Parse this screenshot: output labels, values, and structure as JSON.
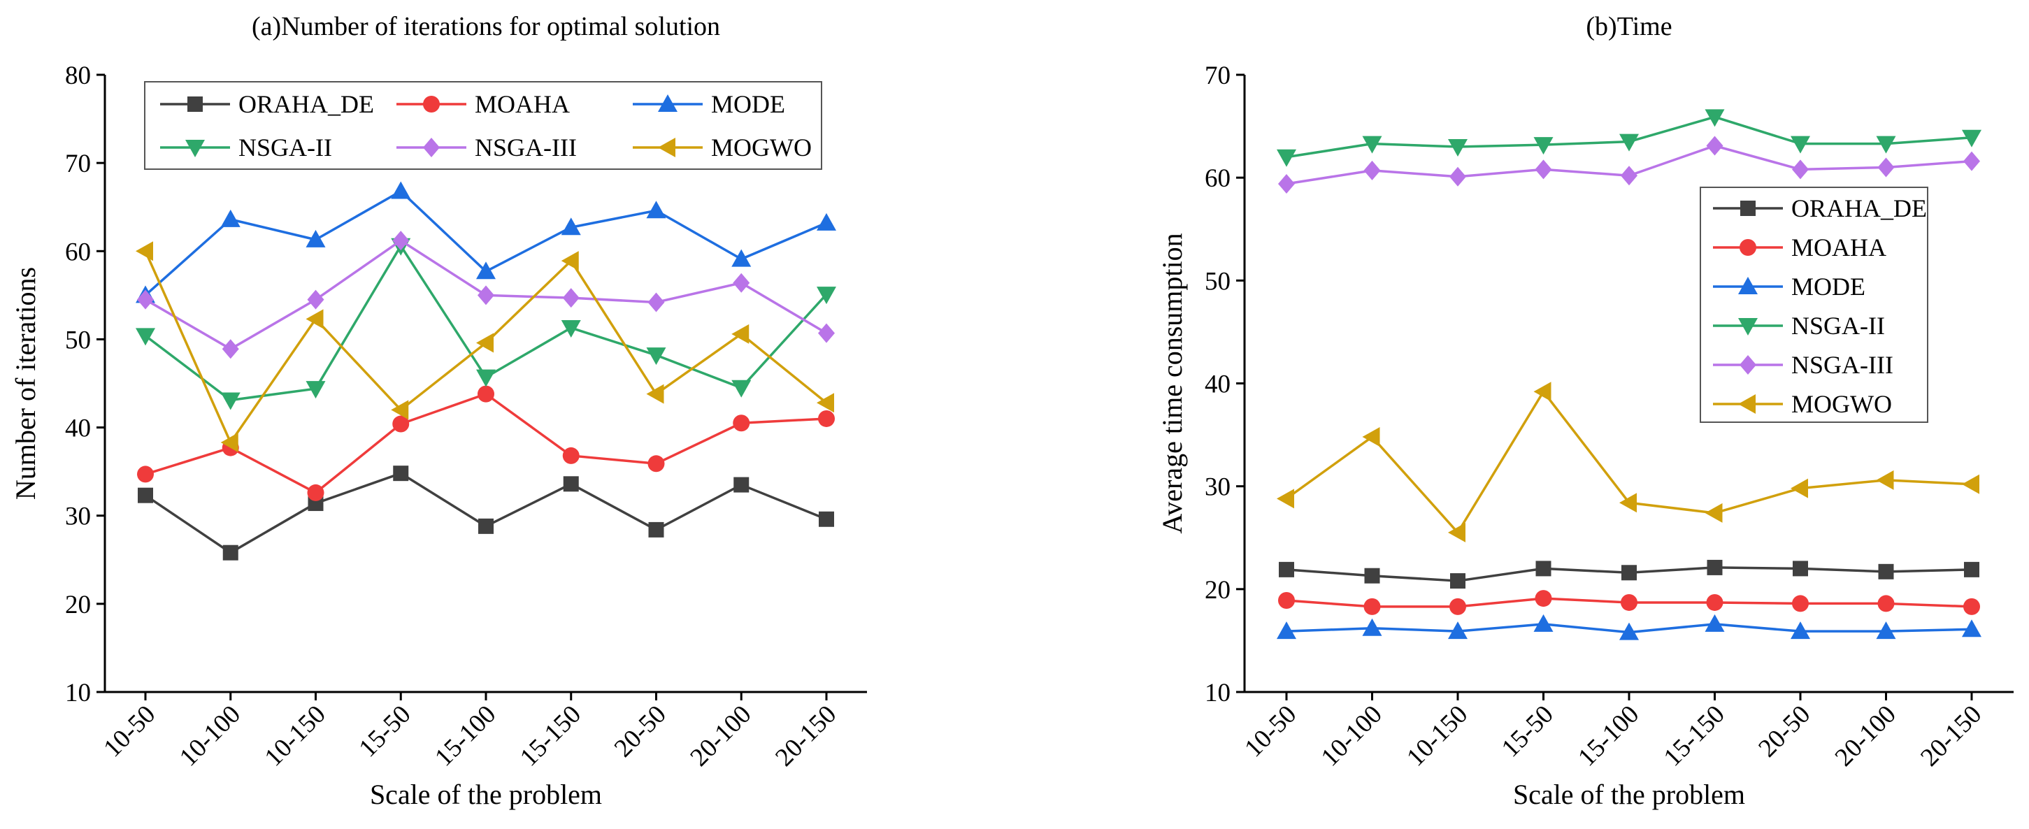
{
  "charts": [
    {
      "type": "line",
      "title": "(a)Number of iterations for optimal solution",
      "xlabel": "Scale of the problem",
      "ylabel": "Number of iterations",
      "categories": [
        "10-50",
        "10-100",
        "10-150",
        "15-50",
        "15-100",
        "15-150",
        "20-50",
        "20-100",
        "20-150"
      ],
      "ylim": [
        10,
        80
      ],
      "yticks": [
        "10",
        "20",
        "30",
        "40",
        "50",
        "60",
        "70",
        "80"
      ],
      "legend_position": "top",
      "series": [
        {
          "name": "ORAHA_DE",
          "color": "#404040",
          "marker": "square",
          "values": [
            32.3,
            25.8,
            31.4,
            34.8,
            28.8,
            33.6,
            28.4,
            33.5,
            29.6
          ]
        },
        {
          "name": "MOAHA",
          "color": "#ef3b3b",
          "marker": "circle",
          "values": [
            34.7,
            37.7,
            32.6,
            40.4,
            43.8,
            36.8,
            35.9,
            40.5,
            41.0
          ]
        },
        {
          "name": "MODE",
          "color": "#1e6ee0",
          "marker": "triangle-up",
          "values": [
            55.0,
            63.6,
            61.3,
            66.8,
            57.7,
            62.7,
            64.6,
            59.1,
            63.2
          ]
        },
        {
          "name": "NSGA-II",
          "color": "#2ea86a",
          "marker": "triangle-down",
          "values": [
            50.4,
            43.1,
            44.4,
            60.6,
            45.7,
            51.3,
            48.2,
            44.5,
            55.1
          ]
        },
        {
          "name": "NSGA-III",
          "color": "#b974e8",
          "marker": "diamond",
          "values": [
            54.5,
            48.9,
            54.5,
            61.2,
            55.0,
            54.7,
            54.2,
            56.4,
            50.7
          ]
        },
        {
          "name": "MOGWO",
          "color": "#d1a00c",
          "marker": "triangle-left",
          "values": [
            60.0,
            38.3,
            52.3,
            42.0,
            49.6,
            58.9,
            43.8,
            50.6,
            42.8
          ]
        }
      ]
    },
    {
      "type": "line",
      "title": "(b)Time",
      "xlabel": "Scale of the problem",
      "ylabel": "Average time consumption",
      "categories": [
        "10-50",
        "10-100",
        "10-150",
        "15-50",
        "15-100",
        "15-150",
        "20-50",
        "20-100",
        "20-150"
      ],
      "ylim": [
        10,
        70
      ],
      "yticks": [
        "10",
        "20",
        "30",
        "40",
        "50",
        "60",
        "70"
      ],
      "legend_position": "right",
      "series": [
        {
          "name": "ORAHA_DE",
          "color": "#404040",
          "marker": "square",
          "values": [
            21.9,
            21.3,
            20.8,
            22.0,
            21.6,
            22.1,
            22.0,
            21.7,
            21.9
          ]
        },
        {
          "name": "MOAHA",
          "color": "#ef3b3b",
          "marker": "circle",
          "values": [
            18.9,
            18.3,
            18.3,
            19.1,
            18.7,
            18.7,
            18.6,
            18.6,
            18.3
          ]
        },
        {
          "name": "MODE",
          "color": "#1e6ee0",
          "marker": "triangle-up",
          "values": [
            15.9,
            16.2,
            15.9,
            16.6,
            15.8,
            16.6,
            15.9,
            15.9,
            16.1
          ]
        },
        {
          "name": "NSGA-II",
          "color": "#2ea86a",
          "marker": "triangle-down",
          "values": [
            62.0,
            63.3,
            63.0,
            63.2,
            63.5,
            65.9,
            63.3,
            63.3,
            63.9
          ]
        },
        {
          "name": "NSGA-III",
          "color": "#b974e8",
          "marker": "diamond",
          "values": [
            59.4,
            60.7,
            60.1,
            60.8,
            60.2,
            63.1,
            60.8,
            61.0,
            61.6
          ]
        },
        {
          "name": "MOGWO",
          "color": "#d1a00c",
          "marker": "triangle-left",
          "values": [
            28.8,
            34.8,
            25.5,
            39.2,
            28.4,
            27.4,
            29.8,
            30.6,
            30.2
          ]
        }
      ]
    }
  ]
}
